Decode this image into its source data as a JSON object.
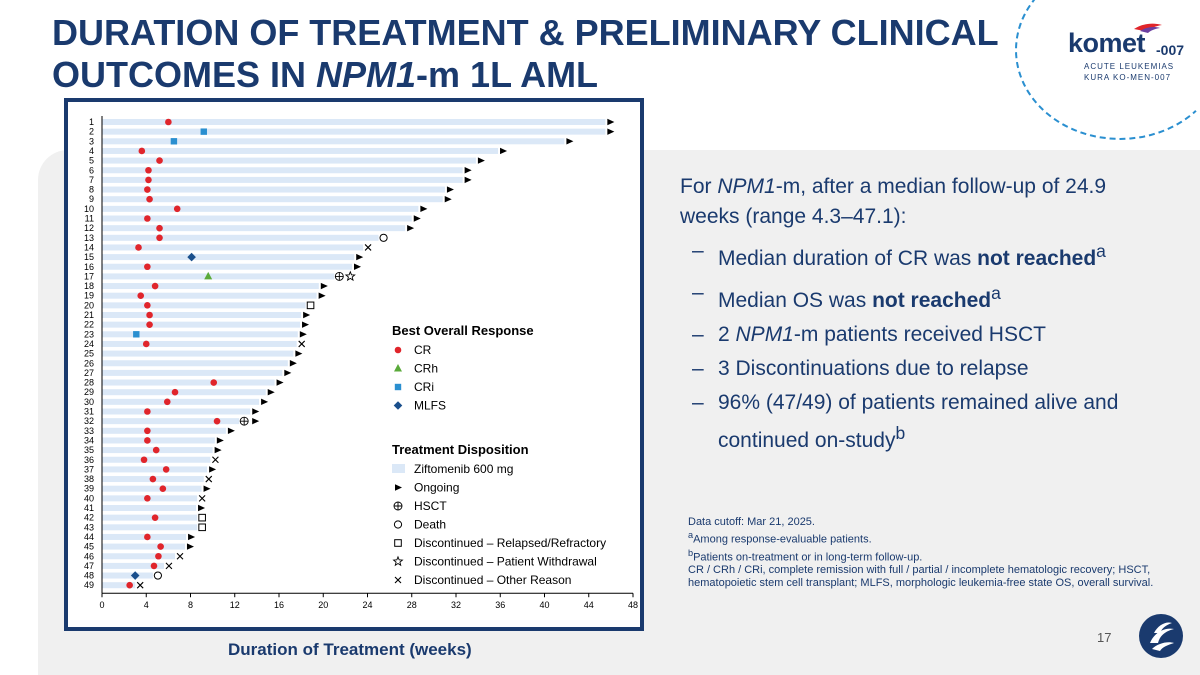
{
  "slide": {
    "title_part1": "DURATION OF TREATMENT & PRELIMINARY CLINICAL OUTCOMES IN ",
    "title_italic": "NPM1",
    "title_part2": "-m 1L AML",
    "page_number": "17",
    "colors": {
      "navy": "#1a3a6e",
      "cr": "#e0252b",
      "crh": "#5aaa3a",
      "cri": "#2a8fd0",
      "mlfs": "#1a4f8c",
      "bar": "#dbe8f7"
    }
  },
  "logo": {
    "name": "komet",
    "suffix": "-007",
    "line1": "ACUTE LEUKEMIAS",
    "line2": "KURA KO-MEN-007"
  },
  "summary": {
    "intro_pre": "For ",
    "intro_italic": "NPM1",
    "intro_post": "-m, after a median follow-up of 24.9 weeks (range 4.3–47.1):",
    "bullets": [
      {
        "pre": "Median duration of CR was ",
        "bold": "not reached",
        "sup": "a",
        "italic": "",
        "post": ""
      },
      {
        "pre": "Median OS was ",
        "bold": "not reached",
        "sup": "a",
        "italic": "",
        "post": ""
      },
      {
        "pre": "2 ",
        "bold": "",
        "sup": "",
        "italic": "NPM1",
        "post": "-m patients received HSCT"
      },
      {
        "pre": "3 Discontinuations due to relapse",
        "bold": "",
        "sup": "",
        "italic": "",
        "post": ""
      },
      {
        "pre": "96% (47/49) of patients remained alive and continued on-study",
        "bold": "",
        "sup": "b",
        "italic": "",
        "post": ""
      }
    ]
  },
  "footnotes": {
    "cutoff": "Data cutoff: Mar 21, 2025.",
    "a": "Among response-evaluable patients.",
    "b": "Patients on-treatment or in long-term follow-up.",
    "abbrev": "CR / CRh / CRi, complete remission with full / partial / incomplete hematologic recovery; HSCT, hematopoietic stem cell transplant; MLFS, morphologic leukemia-free state OS, overall survival.",
    "a_mark": "a",
    "b_mark": "b"
  },
  "chart_data": {
    "type": "swimmer",
    "xlabel": "Duration of Treatment (weeks)",
    "xlim": [
      0,
      48
    ],
    "xticks": [
      0,
      4,
      8,
      12,
      16,
      20,
      24,
      28,
      32,
      36,
      40,
      44,
      48
    ],
    "legend_response_title": "Best Overall Response",
    "legend_response": [
      {
        "key": "CR",
        "label": "CR",
        "shape": "circle"
      },
      {
        "key": "CRh",
        "label": "CRh",
        "shape": "triangle"
      },
      {
        "key": "CRi",
        "label": "CRi",
        "shape": "square"
      },
      {
        "key": "MLFS",
        "label": "MLFS",
        "shape": "diamond"
      }
    ],
    "legend_disposition_title": "Treatment Disposition",
    "legend_disposition": [
      {
        "key": "bar",
        "label": "Ziftomenib 600 mg"
      },
      {
        "key": "ongoing",
        "label": "Ongoing"
      },
      {
        "key": "hsct",
        "label": "HSCT"
      },
      {
        "key": "death",
        "label": "Death"
      },
      {
        "key": "relapse",
        "label": "Discontinued – Relapsed/Refractory"
      },
      {
        "key": "withdrawal",
        "label": "Discontinued – Patient Withdrawal"
      },
      {
        "key": "other",
        "label": "Discontinued – Other Reason"
      }
    ],
    "patients": [
      {
        "id": "1",
        "duration": 45.5,
        "resp": "CR",
        "resp_t": 6.0,
        "end": "ongoing"
      },
      {
        "id": "2",
        "duration": 45.5,
        "resp": "CRi",
        "resp_t": 9.2,
        "end": "ongoing"
      },
      {
        "id": "3",
        "duration": 41.8,
        "resp": "CRi",
        "resp_t": 6.5,
        "end": "ongoing"
      },
      {
        "id": "4",
        "duration": 35.8,
        "resp": "CR",
        "resp_t": 3.6,
        "end": "ongoing"
      },
      {
        "id": "5",
        "duration": 33.8,
        "resp": "CR",
        "resp_t": 5.2,
        "end": "ongoing"
      },
      {
        "id": "6",
        "duration": 32.6,
        "resp": "CR",
        "resp_t": 4.2,
        "end": "ongoing"
      },
      {
        "id": "7",
        "duration": 32.6,
        "resp": "CR",
        "resp_t": 4.2,
        "end": "ongoing"
      },
      {
        "id": "8",
        "duration": 31.0,
        "resp": "CR",
        "resp_t": 4.1,
        "end": "ongoing"
      },
      {
        "id": "9",
        "duration": 30.8,
        "resp": "CR",
        "resp_t": 4.3,
        "end": "ongoing"
      },
      {
        "id": "10",
        "duration": 28.6,
        "resp": "CR",
        "resp_t": 6.8,
        "end": "ongoing"
      },
      {
        "id": "11",
        "duration": 28.0,
        "resp": "CR",
        "resp_t": 4.1,
        "end": "ongoing"
      },
      {
        "id": "12",
        "duration": 27.4,
        "resp": "CR",
        "resp_t": 5.2,
        "end": "ongoing"
      },
      {
        "id": "13",
        "duration": 25.0,
        "resp": "CR",
        "resp_t": 5.2,
        "end": "death"
      },
      {
        "id": "14",
        "duration": 23.6,
        "resp": "CR",
        "resp_t": 3.3,
        "end": "other"
      },
      {
        "id": "15",
        "duration": 22.8,
        "resp": "MLFS",
        "resp_t": 8.1,
        "end": "ongoing"
      },
      {
        "id": "16",
        "duration": 22.6,
        "resp": "CR",
        "resp_t": 4.1,
        "end": "ongoing"
      },
      {
        "id": "17",
        "duration": 21.0,
        "resp": "CRh",
        "resp_t": 9.6,
        "end": "hsct+withdrawal"
      },
      {
        "id": "18",
        "duration": 19.6,
        "resp": "CR",
        "resp_t": 4.8,
        "end": "ongoing"
      },
      {
        "id": "19",
        "duration": 19.4,
        "resp": "CR",
        "resp_t": 3.5,
        "end": "ongoing"
      },
      {
        "id": "20",
        "duration": 18.4,
        "resp": "CR",
        "resp_t": 4.1,
        "end": "relapse"
      },
      {
        "id": "21",
        "duration": 18.0,
        "resp": "CR",
        "resp_t": 4.3,
        "end": "ongoing"
      },
      {
        "id": "22",
        "duration": 17.9,
        "resp": "CR",
        "resp_t": 4.3,
        "end": "ongoing"
      },
      {
        "id": "23",
        "duration": 17.7,
        "resp": "CRi",
        "resp_t": 3.1,
        "end": "ongoing"
      },
      {
        "id": "24",
        "duration": 17.6,
        "resp": "CR",
        "resp_t": 4.0,
        "end": "other"
      },
      {
        "id": "25",
        "duration": 17.3,
        "resp": "",
        "resp_t": 0,
        "end": "ongoing"
      },
      {
        "id": "26",
        "duration": 16.8,
        "resp": "",
        "resp_t": 0,
        "end": "ongoing"
      },
      {
        "id": "27",
        "duration": 16.3,
        "resp": "",
        "resp_t": 0,
        "end": "ongoing"
      },
      {
        "id": "28",
        "duration": 15.6,
        "resp": "CR",
        "resp_t": 10.1,
        "end": "ongoing"
      },
      {
        "id": "29",
        "duration": 14.8,
        "resp": "CR",
        "resp_t": 6.6,
        "end": "ongoing"
      },
      {
        "id": "30",
        "duration": 14.2,
        "resp": "CR",
        "resp_t": 5.9,
        "end": "ongoing"
      },
      {
        "id": "31",
        "duration": 13.4,
        "resp": "CR",
        "resp_t": 4.1,
        "end": "ongoing"
      },
      {
        "id": "32",
        "duration": 12.4,
        "resp": "CR",
        "resp_t": 10.4,
        "end": "hsct+ongoing"
      },
      {
        "id": "33",
        "duration": 11.2,
        "resp": "CR",
        "resp_t": 4.1,
        "end": "ongoing"
      },
      {
        "id": "34",
        "duration": 10.2,
        "resp": "CR",
        "resp_t": 4.1,
        "end": "ongoing"
      },
      {
        "id": "35",
        "duration": 10.0,
        "resp": "CR",
        "resp_t": 4.9,
        "end": "ongoing"
      },
      {
        "id": "36",
        "duration": 9.8,
        "resp": "CR",
        "resp_t": 3.8,
        "end": "other"
      },
      {
        "id": "37",
        "duration": 9.5,
        "resp": "CR",
        "resp_t": 5.8,
        "end": "ongoing"
      },
      {
        "id": "38",
        "duration": 9.2,
        "resp": "CR",
        "resp_t": 4.6,
        "end": "other"
      },
      {
        "id": "39",
        "duration": 9.0,
        "resp": "CR",
        "resp_t": 5.5,
        "end": "ongoing"
      },
      {
        "id": "40",
        "duration": 8.6,
        "resp": "CR",
        "resp_t": 4.1,
        "end": "other"
      },
      {
        "id": "41",
        "duration": 8.5,
        "resp": "",
        "resp_t": 0,
        "end": "ongoing"
      },
      {
        "id": "42",
        "duration": 8.6,
        "resp": "CR",
        "resp_t": 4.8,
        "end": "relapse"
      },
      {
        "id": "43",
        "duration": 8.6,
        "resp": "",
        "resp_t": 0,
        "end": "relapse"
      },
      {
        "id": "44",
        "duration": 7.6,
        "resp": "CR",
        "resp_t": 4.1,
        "end": "ongoing"
      },
      {
        "id": "45",
        "duration": 7.5,
        "resp": "CR",
        "resp_t": 5.3,
        "end": "ongoing"
      },
      {
        "id": "46",
        "duration": 6.6,
        "resp": "CR",
        "resp_t": 5.1,
        "end": "other"
      },
      {
        "id": "47",
        "duration": 5.6,
        "resp": "CR",
        "resp_t": 4.7,
        "end": "other"
      },
      {
        "id": "48",
        "duration": 4.6,
        "resp": "MLFS",
        "resp_t": 3.0,
        "end": "death"
      },
      {
        "id": "49",
        "duration": 3.0,
        "resp": "CR",
        "resp_t": 2.5,
        "end": "other"
      }
    ]
  }
}
